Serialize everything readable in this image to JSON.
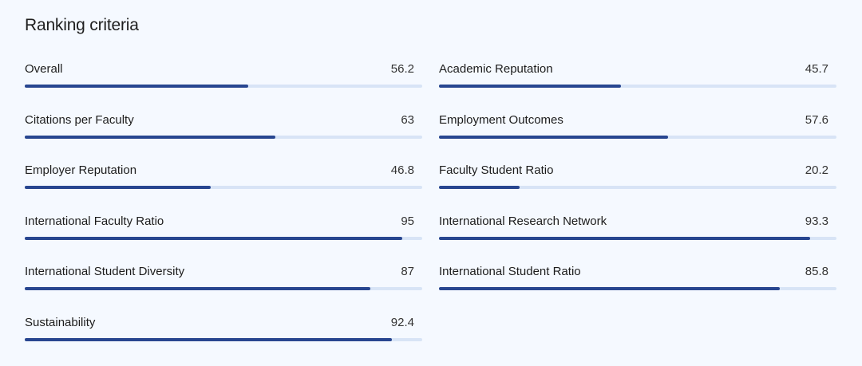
{
  "section": {
    "title": "Ranking criteria"
  },
  "criteria": [
    {
      "label": "Overall",
      "value": "56.2",
      "score": 56.2
    },
    {
      "label": "Academic Reputation",
      "value": "45.7",
      "score": 45.7
    },
    {
      "label": "Citations per Faculty",
      "value": "63",
      "score": 63
    },
    {
      "label": "Employment Outcomes",
      "value": "57.6",
      "score": 57.6
    },
    {
      "label": "Employer Reputation",
      "value": "46.8",
      "score": 46.8
    },
    {
      "label": "Faculty Student Ratio",
      "value": "20.2",
      "score": 20.2
    },
    {
      "label": "International Faculty Ratio",
      "value": "95",
      "score": 95
    },
    {
      "label": "International Research Network",
      "value": "93.3",
      "score": 93.3
    },
    {
      "label": "International Student Diversity",
      "value": "87",
      "score": 87
    },
    {
      "label": "International Student Ratio",
      "value": "85.8",
      "score": 85.8
    },
    {
      "label": "Sustainability",
      "value": "92.4",
      "score": 92.4
    }
  ],
  "colors": {
    "background": "#f5f9ff",
    "bar_track": "#d8e4f6",
    "bar_fill": "#284690"
  }
}
